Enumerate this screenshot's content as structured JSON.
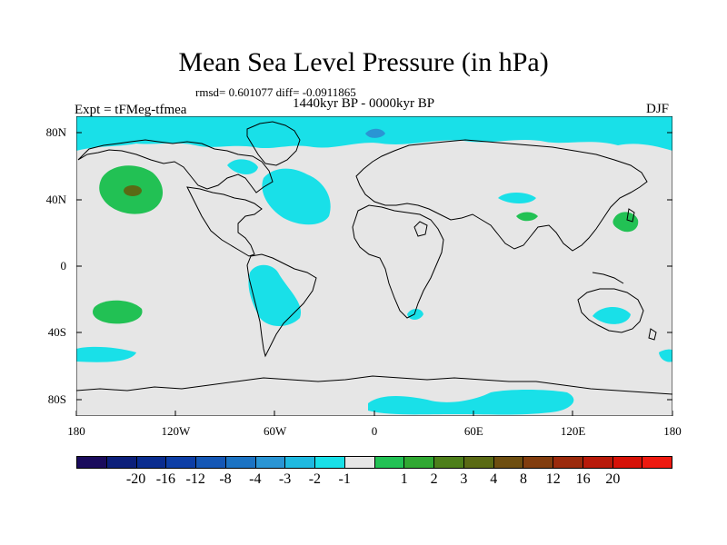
{
  "title": "Mean Sea Level Pressure (in hPa)",
  "stats": "rmsd= 0.601077 diff= -0.0911865",
  "expt": "Expt = tFMeg-tfmea",
  "period": "1440kyr BP - 0000kyr BP",
  "season": "DJF",
  "lat_labels": [
    {
      "text": "80N",
      "lat": 80
    },
    {
      "text": "40N",
      "lat": 40
    },
    {
      "text": "0",
      "lat": 0
    },
    {
      "text": "40S",
      "lat": -40
    },
    {
      "text": "80S",
      "lat": -80
    }
  ],
  "lon_labels": [
    {
      "text": "180",
      "lon": -180
    },
    {
      "text": "120W",
      "lon": -120
    },
    {
      "text": "60W",
      "lon": -60
    },
    {
      "text": "0",
      "lon": 0
    },
    {
      "text": "60E",
      "lon": 60
    },
    {
      "text": "120E",
      "lon": 120
    },
    {
      "text": "180",
      "lon": 180
    }
  ],
  "colorbar": {
    "colors": [
      "#1a0b5c",
      "#0c1f7a",
      "#0a2c8f",
      "#0d3ea6",
      "#1557b5",
      "#1c73c3",
      "#2a95d4",
      "#1fb9e0",
      "#19e0e8",
      "#e6e6e6",
      "#22c154",
      "#30a832",
      "#4d7f1a",
      "#5a6a14",
      "#6e4e10",
      "#823d0e",
      "#9b2a0c",
      "#b81a0a",
      "#d61208",
      "#ee1a10"
    ],
    "labels": [
      "-20",
      "-16",
      "-12",
      "-8",
      "-4",
      "-3",
      "-2",
      "-1",
      "1",
      "2",
      "3",
      "4",
      "8",
      "12",
      "16",
      "20"
    ]
  },
  "colors": {
    "background": "#e6e6e6",
    "negative_light": "#19e0e8",
    "negative_mid": "#1c73c3",
    "positive_light": "#22c154",
    "positive_mid": "#5a6a14"
  }
}
